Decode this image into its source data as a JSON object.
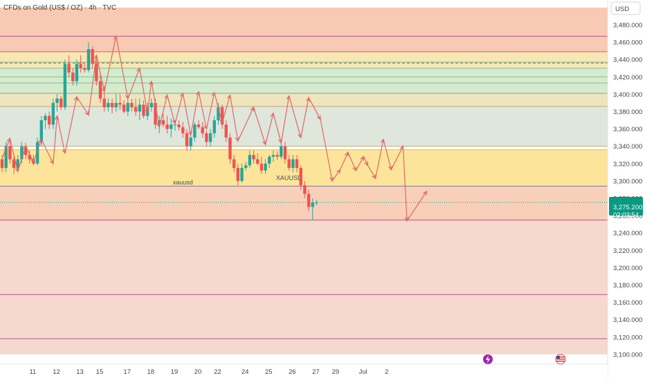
{
  "header": {
    "title": "CFDs on Gold (US$ / OZ) · 4h · TVC"
  },
  "price_axis": {
    "currency": "USD"
  },
  "last_price": {
    "value": "3,275.200",
    "countdown": "02:03:54"
  },
  "colors": {
    "up": "#26a69a",
    "down": "#ef5350",
    "badge": "#089981",
    "arrow": "#e06666"
  },
  "icons": [
    "flash-event-icon",
    "us-flag-event-icon"
  ],
  "chart_data": {
    "type": "candlestick",
    "title": "CFDs on Gold (US$ / OZ) · 4h · TVC",
    "ylim": [
      3100,
      3500
    ],
    "y_ticks": [
      3100,
      3120,
      3140,
      3160,
      3180,
      3200,
      3220,
      3240,
      3260,
      3280,
      3300,
      3320,
      3340,
      3360,
      3380,
      3400,
      3420,
      3440,
      3460,
      3480
    ],
    "y_tick_labels": [
      "3,100.000",
      "3,120.000",
      "3,140.000",
      "3,160.000",
      "3,180.000",
      "3,200.000",
      "3,220.000",
      "3,240.000",
      "3,260.000",
      "3,280.000",
      "3,300.000",
      "3,320.000",
      "3,340.000",
      "3,360.000",
      "3,380.000",
      "3,400.000",
      "3,420.000",
      "3,440.000",
      "3,460.000",
      "3,480.000"
    ],
    "x_tick_labels": [
      {
        "label": "11",
        "bar": 5
      },
      {
        "label": "12",
        "bar": 11
      },
      {
        "label": "13",
        "bar": 17
      },
      {
        "label": "15",
        "bar": 22
      },
      {
        "label": "17",
        "bar": 29
      },
      {
        "label": "18",
        "bar": 35
      },
      {
        "label": "19",
        "bar": 41
      },
      {
        "label": "20",
        "bar": 47
      },
      {
        "label": "22",
        "bar": 52
      },
      {
        "label": "24",
        "bar": 59
      },
      {
        "label": "25",
        "bar": 65
      },
      {
        "label": "26",
        "bar": 71
      },
      {
        "label": "27",
        "bar": 77
      },
      {
        "label": "29",
        "bar": 82
      },
      {
        "label": "Jul",
        "bar": 89
      },
      {
        "label": "2",
        "bar": 95
      }
    ],
    "total_slots": 99,
    "candles": [
      [
        3325,
        3330,
        3310,
        3315
      ],
      [
        3315,
        3345,
        3310,
        3340
      ],
      [
        3340,
        3349,
        3320,
        3325
      ],
      [
        3325,
        3328,
        3308,
        3315
      ],
      [
        3315,
        3330,
        3312,
        3325
      ],
      [
        3325,
        3345,
        3320,
        3340
      ],
      [
        3340,
        3344,
        3325,
        3330
      ],
      [
        3330,
        3335,
        3320,
        3325
      ],
      [
        3325,
        3330,
        3318,
        3320
      ],
      [
        3320,
        3350,
        3318,
        3345
      ],
      [
        3345,
        3375,
        3340,
        3370
      ],
      [
        3370,
        3378,
        3360,
        3375
      ],
      [
        3375,
        3380,
        3360,
        3365
      ],
      [
        3365,
        3395,
        3360,
        3390
      ],
      [
        3390,
        3400,
        3380,
        3395
      ],
      [
        3395,
        3398,
        3382,
        3385
      ],
      [
        3385,
        3440,
        3382,
        3435
      ],
      [
        3435,
        3445,
        3420,
        3425
      ],
      [
        3425,
        3430,
        3410,
        3415
      ],
      [
        3415,
        3440,
        3410,
        3435
      ],
      [
        3435,
        3445,
        3425,
        3430
      ],
      [
        3430,
        3435,
        3425,
        3428
      ],
      [
        3428,
        3460,
        3425,
        3452
      ],
      [
        3452,
        3455,
        3430,
        3435
      ],
      [
        3435,
        3440,
        3410,
        3415
      ],
      [
        3415,
        3425,
        3390,
        3395
      ],
      [
        3395,
        3410,
        3380,
        3385
      ],
      [
        3385,
        3395,
        3380,
        3390
      ],
      [
        3390,
        3395,
        3378,
        3385
      ],
      [
        3385,
        3400,
        3380,
        3390
      ],
      [
        3390,
        3400,
        3382,
        3388
      ],
      [
        3388,
        3393,
        3378,
        3380
      ],
      [
        3380,
        3395,
        3375,
        3390
      ],
      [
        3390,
        3395,
        3380,
        3385
      ],
      [
        3385,
        3395,
        3375,
        3380
      ],
      [
        3380,
        3395,
        3370,
        3388
      ],
      [
        3388,
        3393,
        3372,
        3375
      ],
      [
        3375,
        3390,
        3370,
        3385
      ],
      [
        3385,
        3395,
        3380,
        3390
      ],
      [
        3390,
        3395,
        3360,
        3365
      ],
      [
        3365,
        3375,
        3355,
        3370
      ],
      [
        3370,
        3378,
        3362,
        3365
      ],
      [
        3365,
        3375,
        3355,
        3360
      ],
      [
        3360,
        3372,
        3350,
        3365
      ],
      [
        3365,
        3370,
        3358,
        3365
      ],
      [
        3365,
        3370,
        3358,
        3362
      ],
      [
        3362,
        3368,
        3350,
        3355
      ],
      [
        3355,
        3360,
        3335,
        3340
      ],
      [
        3340,
        3355,
        3335,
        3350
      ],
      [
        3350,
        3368,
        3345,
        3365
      ],
      [
        3365,
        3370,
        3360,
        3362
      ],
      [
        3362,
        3368,
        3350,
        3355
      ],
      [
        3355,
        3358,
        3340,
        3345
      ],
      [
        3345,
        3360,
        3340,
        3355
      ],
      [
        3355,
        3375,
        3350,
        3370
      ],
      [
        3370,
        3390,
        3365,
        3385
      ],
      [
        3385,
        3388,
        3360,
        3365
      ],
      [
        3365,
        3370,
        3345,
        3350
      ],
      [
        3350,
        3355,
        3320,
        3325
      ],
      [
        3325,
        3330,
        3310,
        3315
      ],
      [
        3315,
        3320,
        3295,
        3300
      ],
      [
        3300,
        3320,
        3298,
        3315
      ],
      [
        3315,
        3322,
        3312,
        3318
      ],
      [
        3318,
        3335,
        3315,
        3330
      ],
      [
        3330,
        3335,
        3320,
        3325
      ],
      [
        3325,
        3332,
        3318,
        3320
      ],
      [
        3320,
        3328,
        3308,
        3312
      ],
      [
        3312,
        3325,
        3308,
        3320
      ],
      [
        3320,
        3330,
        3315,
        3328
      ],
      [
        3328,
        3335,
        3322,
        3330
      ],
      [
        3330,
        3334,
        3324,
        3328
      ],
      [
        3328,
        3345,
        3325,
        3340
      ],
      [
        3340,
        3345,
        3320,
        3325
      ],
      [
        3325,
        3330,
        3312,
        3315
      ],
      [
        3315,
        3330,
        3310,
        3325
      ],
      [
        3325,
        3330,
        3310,
        3315
      ],
      [
        3315,
        3318,
        3290,
        3295
      ],
      [
        3295,
        3300,
        3280,
        3285
      ],
      [
        3285,
        3290,
        3265,
        3270
      ],
      [
        3270,
        3280,
        3255,
        3275
      ],
      [
        3275,
        3278,
        3272,
        3275
      ]
    ],
    "horizontal_levels": [
      3467,
      3449,
      3437,
      3430,
      3420,
      3413,
      3401,
      3386,
      3340,
      3336,
      3294,
      3255,
      3169,
      3118
    ],
    "dashed_level": 3436,
    "zones": [
      {
        "from": 3449,
        "to": 3500,
        "color": "#f7c1a6"
      },
      {
        "from": 3430,
        "to": 3449,
        "color": "#f6e3a6"
      },
      {
        "from": 3401,
        "to": 3430,
        "color": "#cfe7c4"
      },
      {
        "from": 3386,
        "to": 3401,
        "color": "#ebe1b4"
      },
      {
        "from": 3340,
        "to": 3386,
        "color": "#d9e2d5"
      },
      {
        "from": 3294,
        "to": 3336,
        "color": "#fbe08a"
      },
      {
        "from": 3255,
        "to": 3294,
        "color": "#f7c8ae"
      },
      {
        "from": 3100,
        "to": 3255,
        "color": "#f5d2c6"
      }
    ],
    "zone_labels": [
      {
        "text": "xauusd",
        "bar": 46,
        "price": 3296
      },
      {
        "text": "XAUUSD",
        "bar": 73,
        "price": 3301
      }
    ],
    "arrow_path": [
      [
        0,
        3326
      ],
      [
        2,
        3349
      ],
      [
        4,
        3311
      ],
      [
        6,
        3340
      ],
      [
        8,
        3322
      ],
      [
        10,
        3348
      ],
      [
        13,
        3320
      ],
      [
        14,
        3375
      ],
      [
        16,
        3332
      ],
      [
        19,
        3397
      ],
      [
        22,
        3376
      ],
      [
        24,
        3445
      ],
      [
        26,
        3403
      ],
      [
        29,
        3467
      ],
      [
        32,
        3395
      ],
      [
        35,
        3430
      ],
      [
        37,
        3378
      ],
      [
        38,
        3415
      ],
      [
        40,
        3362
      ],
      [
        42,
        3399
      ],
      [
        44,
        3366
      ],
      [
        46,
        3401
      ],
      [
        48,
        3353
      ],
      [
        50,
        3403
      ],
      [
        52,
        3360
      ],
      [
        54,
        3402
      ],
      [
        56,
        3367
      ],
      [
        58,
        3399
      ],
      [
        60,
        3346
      ],
      [
        64,
        3385
      ],
      [
        67,
        3342
      ],
      [
        69,
        3378
      ],
      [
        71,
        3344
      ],
      [
        73,
        3398
      ],
      [
        76,
        3350
      ],
      [
        78,
        3396
      ],
      [
        81,
        3371
      ],
      [
        84,
        3300
      ],
      [
        86,
        3313
      ],
      [
        88,
        3333
      ],
      [
        90,
        3312
      ],
      [
        92,
        3328
      ],
      [
        93,
        3318
      ],
      [
        95,
        3303
      ],
      [
        97,
        3348
      ],
      [
        99,
        3313
      ],
      [
        102,
        3340
      ],
      [
        103,
        3254
      ],
      [
        108,
        3288
      ]
    ]
  }
}
